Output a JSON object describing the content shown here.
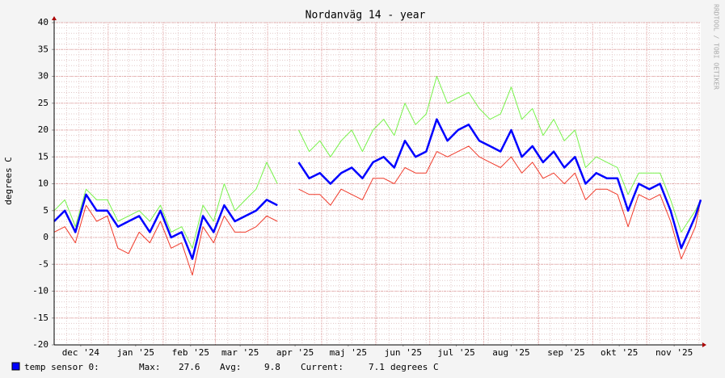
{
  "chart_data": {
    "type": "line",
    "title": "Nordanväg 14 - year",
    "ylabel": "degrees C",
    "side_text": "RRDTOOL / TOBI OETIKER",
    "x": [
      0,
      6,
      12,
      18,
      24,
      30,
      36,
      42,
      48,
      54,
      60,
      66,
      72,
      78,
      84,
      90,
      96,
      102,
      108,
      114,
      120,
      126,
      132,
      138,
      144,
      150,
      156,
      162,
      168,
      174,
      180,
      186,
      192,
      198,
      204,
      210,
      216,
      222,
      228,
      234,
      240,
      246,
      252,
      258,
      264,
      270,
      276,
      282,
      288,
      294,
      300,
      306,
      312,
      318,
      324,
      330,
      336,
      342,
      348,
      354,
      358,
      362,
      365
    ],
    "series": [
      {
        "color": "#77f24a",
        "values": [
          5,
          7,
          2,
          9,
          7,
          7,
          3,
          4,
          5,
          3,
          6,
          1,
          2,
          -2,
          6,
          3,
          10,
          5,
          7,
          9,
          14,
          10,
          null,
          20,
          16,
          18,
          15,
          18,
          20,
          16,
          20,
          22,
          19,
          25,
          21,
          23,
          30,
          25,
          26,
          27,
          24,
          22,
          23,
          28,
          22,
          24,
          19,
          22,
          18,
          20,
          13,
          15,
          14,
          13,
          8,
          12,
          12,
          12,
          7,
          1,
          3,
          5,
          7
        ]
      },
      {
        "color": "#f03a2a",
        "values": [
          1,
          2,
          -1,
          6,
          3,
          4,
          -2,
          -3,
          1,
          -1,
          3,
          -2,
          -1,
          -7,
          2,
          -1,
          4,
          1,
          1,
          2,
          4,
          3,
          null,
          9,
          8,
          8,
          6,
          9,
          8,
          7,
          11,
          11,
          10,
          13,
          12,
          12,
          16,
          15,
          16,
          17,
          15,
          14,
          13,
          15,
          12,
          14,
          11,
          12,
          10,
          12,
          7,
          9,
          9,
          8,
          2,
          8,
          7,
          8,
          3,
          -4,
          -1,
          2,
          7
        ]
      },
      {
        "name": "temp sensor 0:",
        "color": "#0000ff",
        "values": [
          3,
          5,
          1,
          8,
          5,
          5,
          2,
          3,
          4,
          1,
          5,
          0,
          1,
          -4,
          4,
          1,
          6,
          3,
          4,
          5,
          7,
          6,
          null,
          14,
          11,
          12,
          10,
          12,
          13,
          11,
          14,
          15,
          13,
          18,
          15,
          16,
          22,
          18,
          20,
          21,
          18,
          17,
          16,
          20,
          15,
          17,
          14,
          16,
          13,
          15,
          10,
          12,
          11,
          11,
          5,
          10,
          9,
          10,
          5,
          -2,
          1,
          4,
          7
        ]
      }
    ],
    "xlim": [
      0,
      365
    ],
    "xticks": [
      {
        "value": 15,
        "label": "dec '24"
      },
      {
        "value": 46,
        "label": "jan '25"
      },
      {
        "value": 77,
        "label": "feb '25"
      },
      {
        "value": 105,
        "label": "mar '25"
      },
      {
        "value": 136,
        "label": "apr '25"
      },
      {
        "value": 166,
        "label": "maj '25"
      },
      {
        "value": 197,
        "label": "jun '25"
      },
      {
        "value": 227,
        "label": "jul '25"
      },
      {
        "value": 258,
        "label": "aug '25"
      },
      {
        "value": 289,
        "label": "sep '25"
      },
      {
        "value": 319,
        "label": "okt '25"
      },
      {
        "value": 350,
        "label": "nov '25"
      }
    ],
    "ylim": [
      -20,
      40
    ],
    "yticks": [
      -20,
      -15,
      -10,
      -5,
      0,
      5,
      10,
      15,
      20,
      25,
      30,
      35,
      40
    ],
    "grid": true,
    "legend": {
      "max_label": "Max:",
      "max": 27.6,
      "avg_label": "Avg:",
      "avg": 9.8,
      "current_label": "Current:",
      "current": 7.1,
      "unit": "degrees C"
    }
  }
}
